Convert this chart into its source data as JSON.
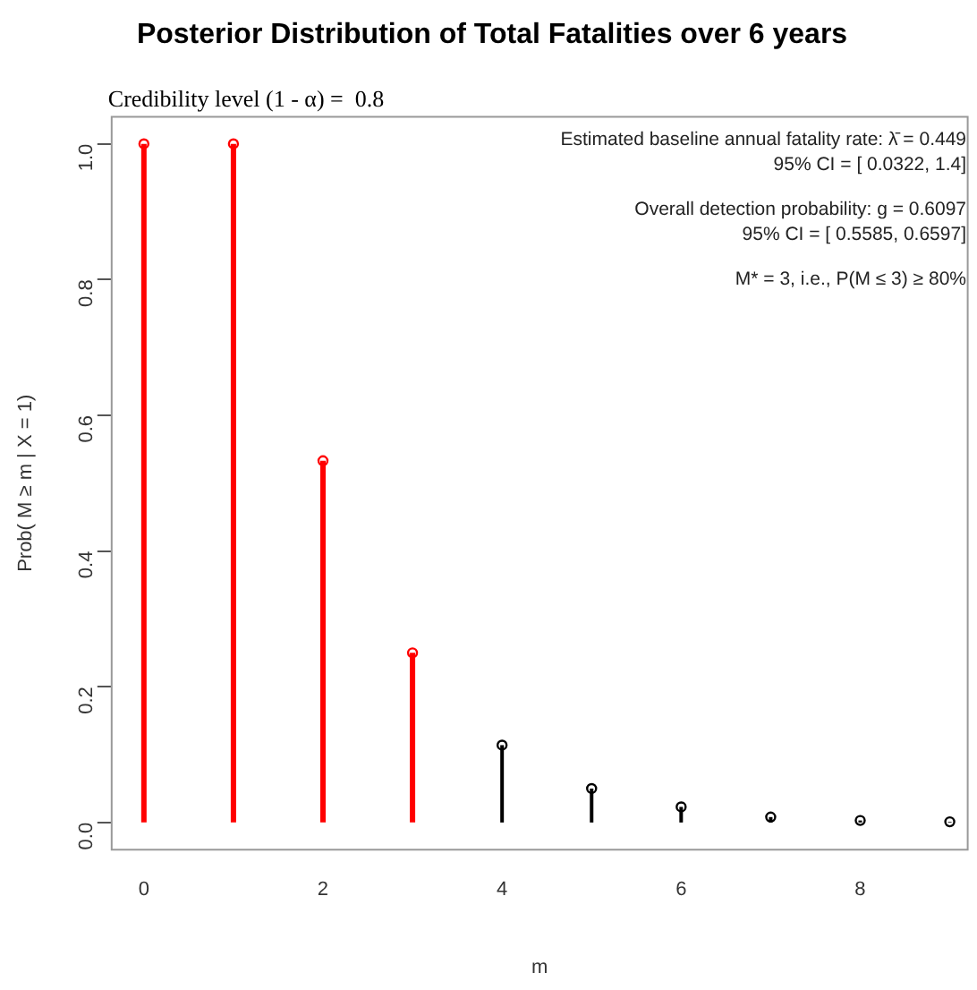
{
  "chart_data": {
    "type": "lollipop",
    "title": "Posterior Distribution of Total Fatalities over 6 years",
    "xlabel": "m",
    "ylabel": "Prob( M ≥ m | X = 1)",
    "x": [
      0,
      1,
      2,
      3,
      4,
      5,
      6,
      7,
      8,
      9
    ],
    "values": [
      1.0,
      1.0,
      0.533,
      0.25,
      0.114,
      0.05,
      0.023,
      0.008,
      0.003,
      0.001
    ],
    "colors": [
      "#ff0000",
      "#ff0000",
      "#ff0000",
      "#ff0000",
      "#000000",
      "#000000",
      "#000000",
      "#000000",
      "#000000",
      "#000000"
    ],
    "xlim": [
      -0.36,
      9.2
    ],
    "xticks": [
      0,
      2,
      4,
      6,
      8
    ],
    "ylim": [
      -0.04,
      1.04
    ],
    "yticks": [
      {
        "value": 0,
        "label": "0.0"
      },
      0.2,
      0.4,
      0.6,
      0.8,
      {
        "value": 1,
        "label": "1.0"
      }
    ],
    "marker": "circle",
    "grid": false,
    "legend": false,
    "annotations": [
      "Credibility level (1 - α) =  0.8",
      "Estimated baseline annual fatality rate: λ̄ = 0.449",
      "95% CI = [ 0.0322, 1.4]",
      "Overall detection probability: g = 0.6097",
      "95% CI = [ 0.5585, 0.6597]",
      "M* = 3, i.e., P(M ≤ 3) ≥ 80%"
    ]
  }
}
